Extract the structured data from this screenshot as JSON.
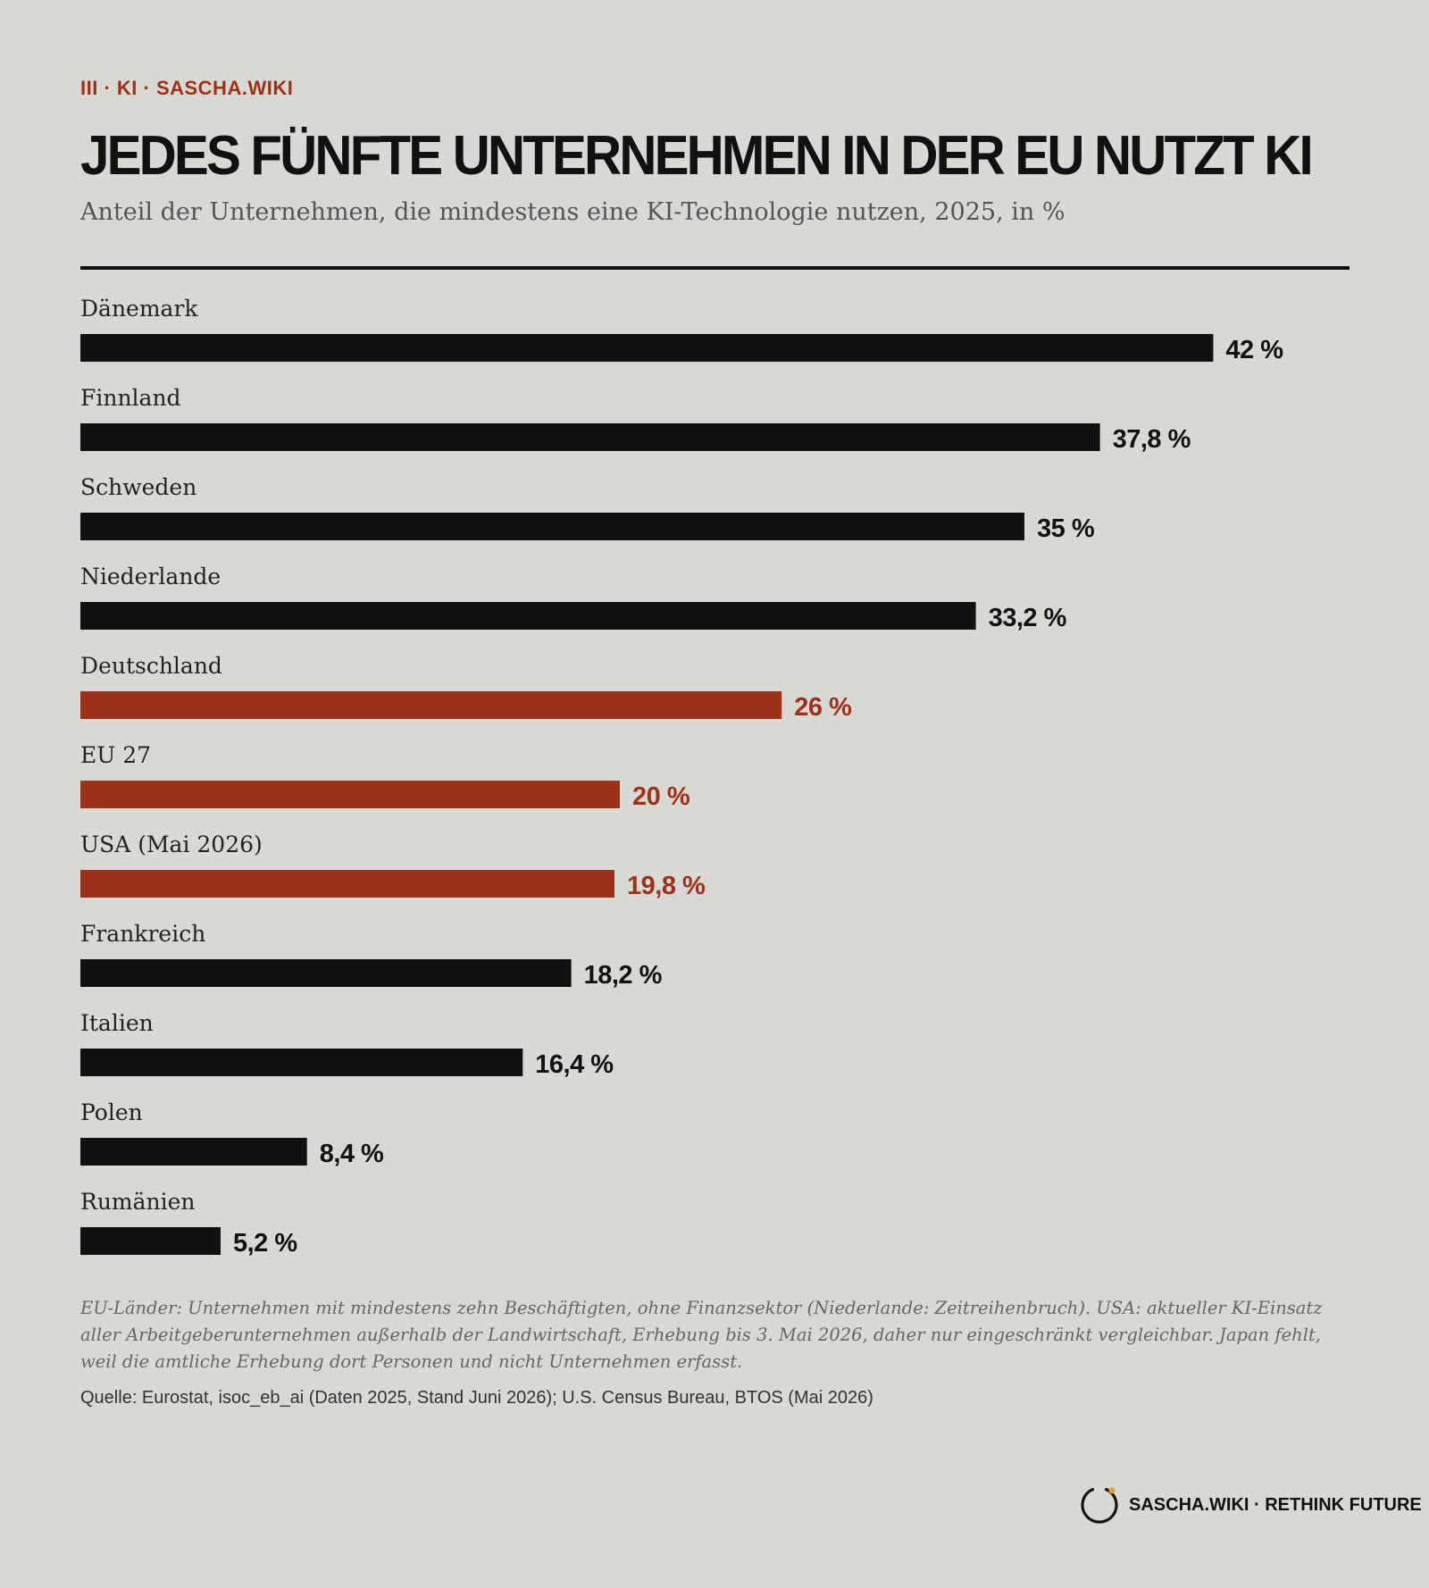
{
  "header": {
    "kicker": "III · KI · SASCHA.WIKI",
    "title": "JEDES FÜNFTE UNTERNEHMEN IN DER EU NUTZT KI",
    "subtitle": "Anteil der Unternehmen, die mindestens eine KI-Technologie nutzen, 2025, in %"
  },
  "chart_data": {
    "type": "bar",
    "orientation": "horizontal",
    "title": "JEDES FÜNFTE UNTERNEHMEN IN DER EU NUTZT KI",
    "subtitle": "Anteil der Unternehmen, die mindestens eine KI-Technologie nutzen, 2025, in %",
    "xlim": [
      0,
      50
    ],
    "grid": false,
    "legend": "none",
    "colors": {
      "default": "#111111",
      "highlight": "#9b3219"
    },
    "categories": [
      "Dänemark",
      "Finnland",
      "Schweden",
      "Niederlande",
      "Deutschland",
      "EU 27",
      "USA (Mai 2026)",
      "Frankreich",
      "Italien",
      "Polen",
      "Rumänien"
    ],
    "values": [
      42,
      37.8,
      35,
      33.2,
      26,
      20,
      19.8,
      18.2,
      16.4,
      8.4,
      5.2
    ],
    "value_labels": [
      "42 %",
      "37,8 %",
      "35 %",
      "33,2 %",
      "26 %",
      "20 %",
      "19,8 %",
      "18,2 %",
      "16,4 %",
      "8,4 %",
      "5,2 %"
    ],
    "highlighted": [
      false,
      false,
      false,
      false,
      true,
      true,
      true,
      false,
      false,
      false,
      false
    ]
  },
  "footer": {
    "note": "EU-Länder: Unternehmen mit mindestens zehn Beschäftigten, ohne Finanzsektor (Niederlande: Zeitreihenbruch). USA: aktueller KI-Einsatz aller Arbeitgeberunternehmen außerhalb der Landwirtschaft, Erhebung bis 3. Mai 2026, daher nur eingeschränkt vergleichbar. Japan fehlt, weil die amtliche Erhebung dort Personen und nicht Unternehmen erfasst.",
    "source": "Quelle: Eurostat, isoc_eb_ai (Daten 2025, Stand Juni 2026); U.S. Census Bureau, BTOS (Mai 2026)",
    "brand": "SASCHA.WIKI · RETHINK FUTURE",
    "brand_logo_icon": "ring-logo-icon",
    "brand_accent": "#d9a23a"
  }
}
